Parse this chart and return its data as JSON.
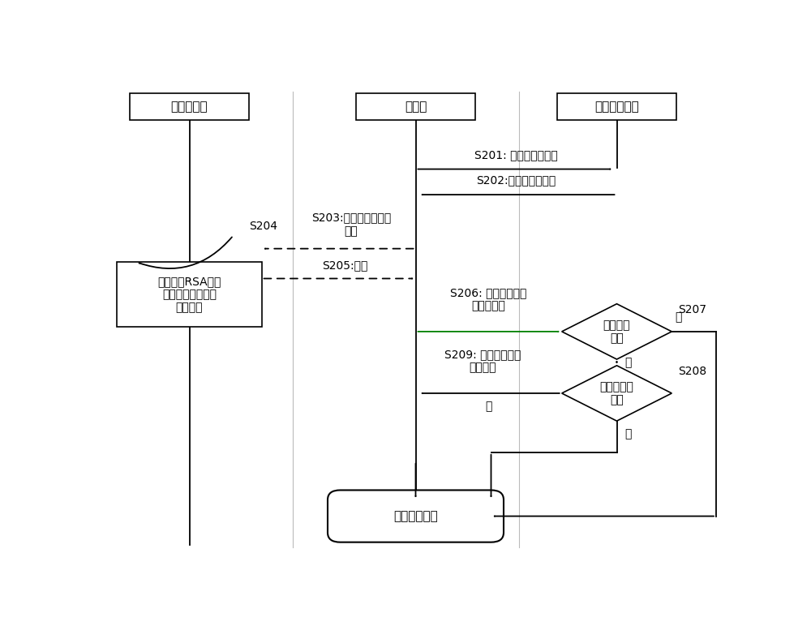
{
  "bg_color": "#ffffff",
  "line_color": "#000000",
  "green_line_color": "#008000",
  "c1x": 0.14,
  "c2x": 0.5,
  "c3x": 0.82,
  "header1_text": "密码服务器",
  "header2_text": "客户端",
  "header3_text": "网络监控设备",
  "process_box_text": "服务器用RSA私鑰\n把特征码转为重置\n密码口令",
  "end_ellipse_text": "重置密码结束",
  "diamond1_text": "口令是否\n有效",
  "diamond2_text": "新密码是否\n有效",
  "s201_text": "S201: 获取设备特征码",
  "s202_text": "S202:设备返回特征码",
  "s203_label": "S203:反馈特征码至服\n务器",
  "s204_text": "S204",
  "s205_text": "S205:口令",
  "s206_text": "S206: 口令、新密码\n发送给设备",
  "s207_text": "S207",
  "s208_text": "S208",
  "s209_text": "S209: 返回重置密码\n成功结果",
  "yes_text": "是",
  "no_text": "否",
  "font_size": 11,
  "small_font_size": 10
}
